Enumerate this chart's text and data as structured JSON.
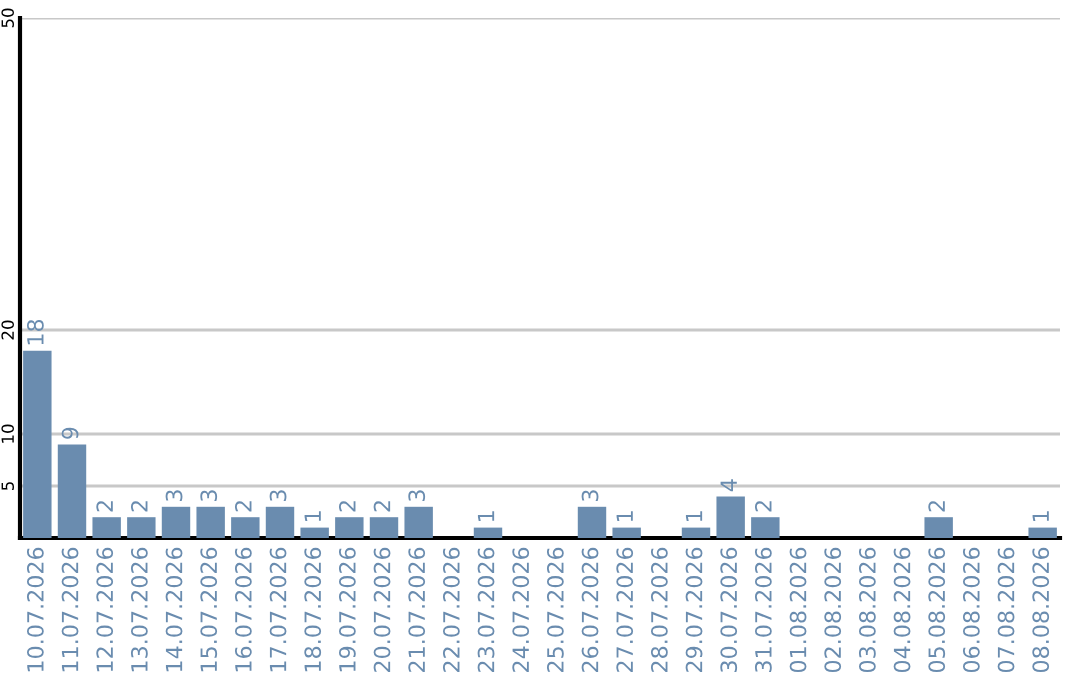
{
  "chart_data": {
    "type": "bar",
    "categories": [
      "10.07.2026",
      "11.07.2026",
      "12.07.2026",
      "13.07.2026",
      "14.07.2026",
      "15.07.2026",
      "16.07.2026",
      "17.07.2026",
      "18.07.2026",
      "19.07.2026",
      "20.07.2026",
      "21.07.2026",
      "22.07.2026",
      "23.07.2026",
      "24.07.2026",
      "25.07.2026",
      "26.07.2026",
      "27.07.2026",
      "28.07.2026",
      "29.07.2026",
      "30.07.2026",
      "31.07.2026",
      "01.08.2026",
      "02.08.2026",
      "03.08.2026",
      "04.08.2026",
      "05.08.2026",
      "06.08.2026",
      "07.08.2026",
      "08.08.2026"
    ],
    "values": [
      18,
      9,
      2,
      2,
      3,
      3,
      2,
      3,
      1,
      2,
      2,
      3,
      0,
      1,
      0,
      0,
      3,
      1,
      0,
      1,
      4,
      2,
      0,
      0,
      0,
      0,
      2,
      0,
      0,
      1
    ],
    "value_labels": [
      "18",
      "9",
      "2",
      "2",
      "3",
      "3",
      "2",
      "3",
      "1",
      "2",
      "2",
      "3",
      null,
      "1",
      null,
      null,
      "3",
      "1",
      null,
      "1",
      "4",
      "2",
      null,
      null,
      null,
      null,
      "2",
      null,
      null,
      "1"
    ],
    "color": "#6a8caf",
    "ylim": [
      0,
      50
    ],
    "yticks": [
      5,
      10,
      20,
      50
    ],
    "grid": "y",
    "legend": false
  }
}
